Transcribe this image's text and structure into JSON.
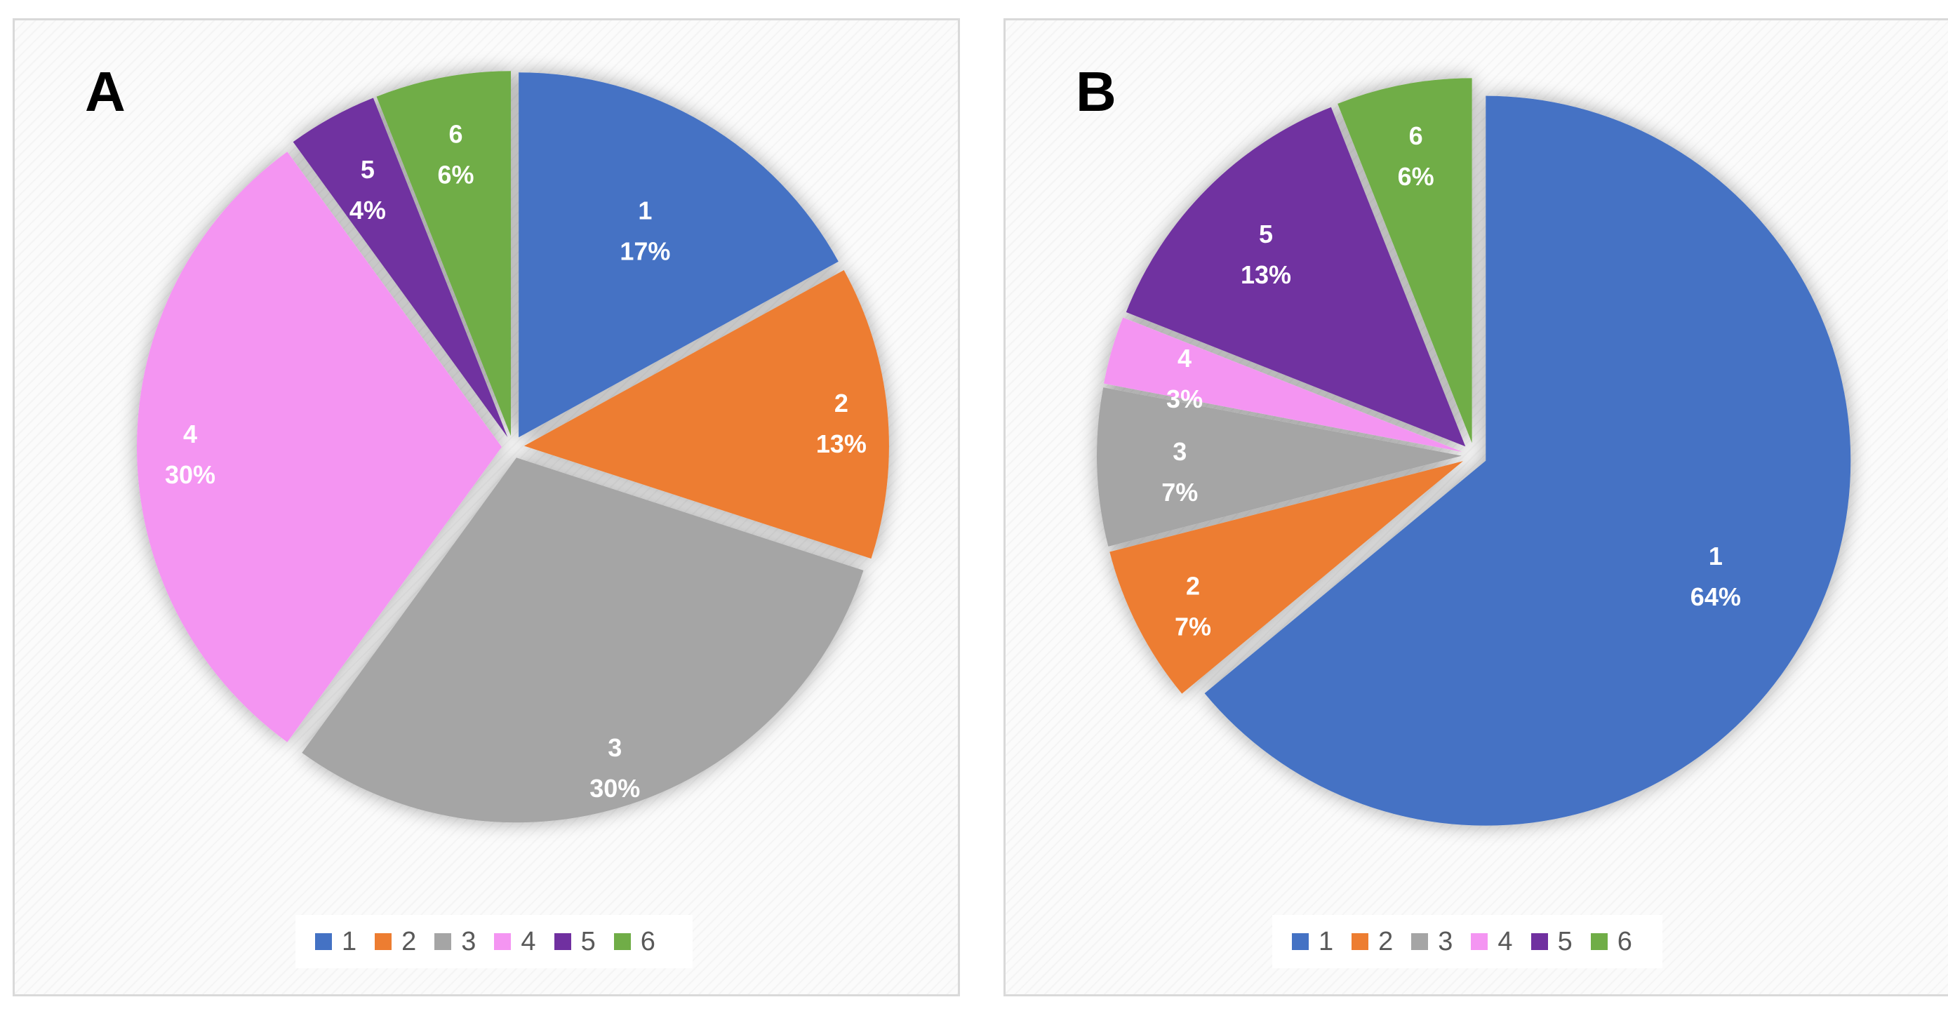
{
  "chart_data": [
    {
      "type": "pie",
      "panel_label": "A",
      "categories": [
        "1",
        "2",
        "3",
        "4",
        "5",
        "6"
      ],
      "values": [
        17,
        13,
        30,
        30,
        4,
        6
      ],
      "labels": [
        "17%",
        "13%",
        "30%",
        "30%",
        "4%",
        "6%"
      ],
      "colors": [
        "#4472C4",
        "#ED7D31",
        "#A5A5A5",
        "#F495F2",
        "#7030A0",
        "#70AD47"
      ],
      "legend": [
        "1",
        "2",
        "3",
        "4",
        "5",
        "6"
      ],
      "legend_position": "bottom",
      "exploded": true
    },
    {
      "type": "pie",
      "panel_label": "B",
      "categories": [
        "1",
        "2",
        "3",
        "4",
        "5",
        "6"
      ],
      "values": [
        64,
        7,
        7,
        3,
        13,
        6
      ],
      "labels": [
        "64%",
        "7%",
        "7%",
        "3%",
        "13%",
        "6%"
      ],
      "colors": [
        "#4472C4",
        "#ED7D31",
        "#A5A5A5",
        "#F495F2",
        "#7030A0",
        "#70AD47"
      ],
      "legend": [
        "1",
        "2",
        "3",
        "4",
        "5",
        "6"
      ],
      "legend_position": "bottom",
      "exploded": true
    }
  ]
}
